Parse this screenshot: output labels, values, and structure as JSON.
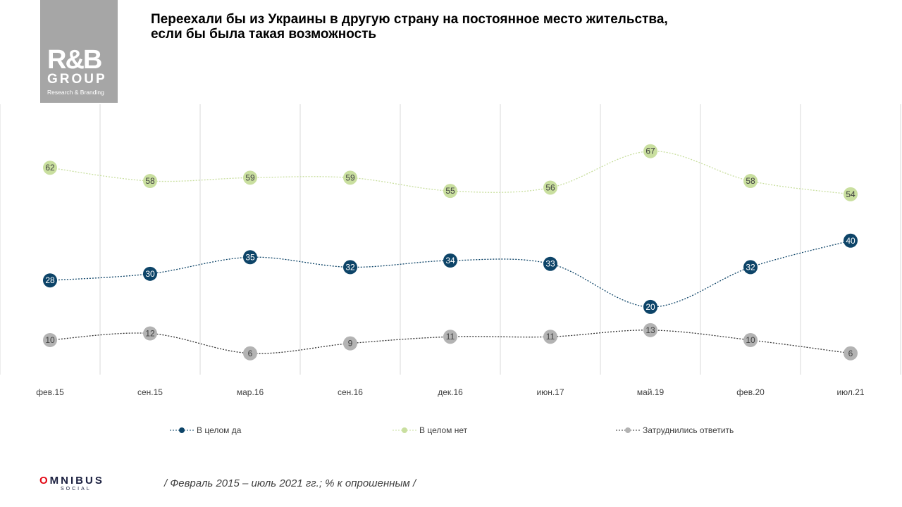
{
  "logo": {
    "brand": "R&B",
    "group": "GROUP",
    "sub": "Research & Branding"
  },
  "title_line1": "Переехали бы из Украины в другую страну на постоянное место жительства,",
  "title_line2": "если бы была такая возможность",
  "chart_data": {
    "type": "line",
    "categories": [
      "фев.15",
      "сен.15",
      "мар.16",
      "сен.16",
      "дек.16",
      "июн.17",
      "май.19",
      "фев.20",
      "июл.21"
    ],
    "series": [
      {
        "name": "В целом да",
        "color": "#0d4468",
        "values": [
          28,
          30,
          35,
          32,
          34,
          33,
          20,
          32,
          40
        ]
      },
      {
        "name": "В целом нет",
        "color": "#c9df9f",
        "values": [
          62,
          58,
          59,
          59,
          55,
          56,
          67,
          58,
          54
        ]
      },
      {
        "name": "Затруднились  ответить",
        "color": "#b3b3b3",
        "values": [
          10,
          12,
          6,
          9,
          11,
          11,
          13,
          10,
          6
        ]
      }
    ],
    "ylim": [
      0,
      80
    ],
    "grid": "vertical",
    "legend": "bottom"
  },
  "footer": {
    "omnibus_o": "O",
    "omnibus_rest": "MNIBUS",
    "social": "SOCIAL",
    "note": "/ Февраль 2015 – июль 2021 гг.; % к опрошенным /"
  }
}
